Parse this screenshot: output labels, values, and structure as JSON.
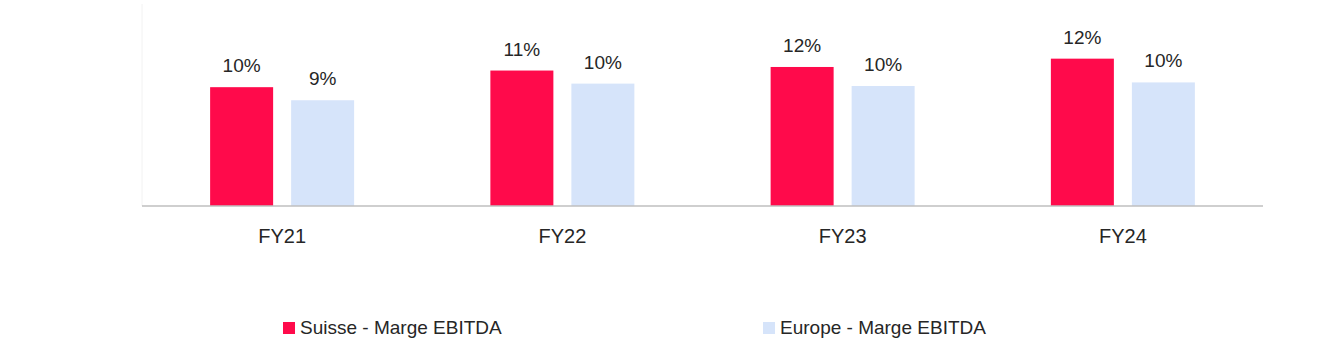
{
  "chart_data": {
    "type": "bar",
    "categories": [
      "FY21",
      "FY22",
      "FY23",
      "FY24"
    ],
    "series": [
      {
        "name": "Suisse - Marge EBITDA",
        "color": "#ff0a4b",
        "values": [
          10.0,
          11.4,
          11.7,
          12.4
        ],
        "value_labels": [
          "10%",
          "11%",
          "12%",
          "12%"
        ]
      },
      {
        "name": "Europe - Marge EBITDA",
        "color": "#d6e4fa",
        "values": [
          8.9,
          10.3,
          10.1,
          10.4
        ],
        "value_labels": [
          "9%",
          "10%",
          "10%",
          "10%"
        ]
      }
    ],
    "ylim": [
      0,
      17
    ],
    "data_labels": true,
    "tick_labels": "x",
    "grid": false,
    "legend": "bottom"
  }
}
